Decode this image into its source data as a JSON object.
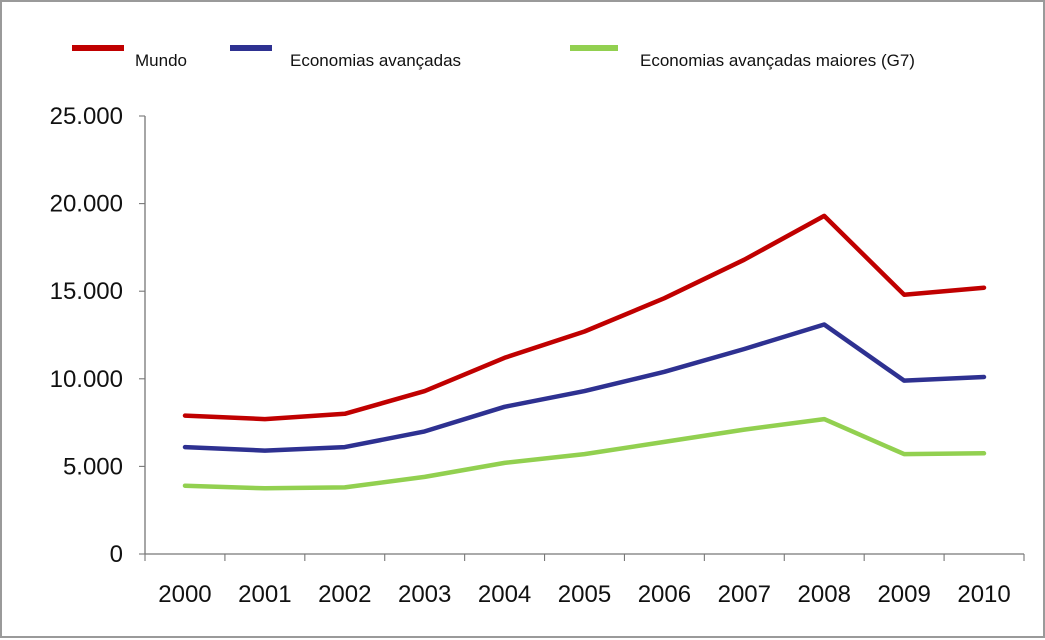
{
  "chart_data": {
    "type": "line",
    "title": "",
    "xlabel": "",
    "ylabel": "",
    "categories": [
      "2000",
      "2001",
      "2002",
      "2003",
      "2004",
      "2005",
      "2006",
      "2007",
      "2008",
      "2009",
      "2010"
    ],
    "ylim": [
      0,
      25000
    ],
    "y_ticks": [
      0,
      5000,
      10000,
      15000,
      20000,
      25000
    ],
    "y_tick_labels": [
      "0",
      "5.000",
      "10.000",
      "15.000",
      "20.000",
      "25.000"
    ],
    "grid": false,
    "legend_position": "top",
    "series": [
      {
        "name": "Mundo",
        "color": "#c00000",
        "values": [
          7900,
          7700,
          8000,
          9300,
          11200,
          12700,
          14600,
          16800,
          19300,
          14800,
          15200
        ]
      },
      {
        "name": "Economias avançadas",
        "color": "#2e3191",
        "values": [
          6100,
          5900,
          6100,
          7000,
          8400,
          9300,
          10400,
          11700,
          13100,
          9900,
          10100
        ]
      },
      {
        "name": "Economias avançadas maiores (G7)",
        "color": "#92d050",
        "values": [
          3900,
          3750,
          3800,
          4400,
          5200,
          5700,
          6400,
          7100,
          7700,
          5700,
          5750
        ]
      }
    ]
  }
}
